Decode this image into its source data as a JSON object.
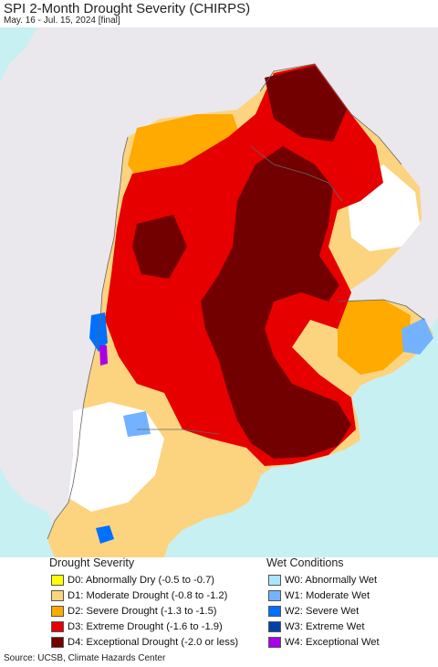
{
  "title": "SPI 2-Month Drought Severity (CHIRPS)",
  "subtitle": "May. 16 - Jul. 15, 2024 [final]",
  "map": {
    "ocean_color": "#c7f0f3",
    "land_outside_color": "#eae8ec",
    "border_color": "#666666"
  },
  "legend": {
    "drought_title": "Drought Severity",
    "wet_title": "Wet Conditions",
    "drought": [
      {
        "label": "D0: Abnormally Dry (-0.5 to -0.7)",
        "color": "#ffff00"
      },
      {
        "label": "D1: Moderate Drought (-0.8 to -1.2)",
        "color": "#fcd37f"
      },
      {
        "label": "D2: Severe Drought (-1.3 to -1.5)",
        "color": "#ffaa00"
      },
      {
        "label": "D3: Extreme Drought (-1.6 to -1.9)",
        "color": "#e60000"
      },
      {
        "label": "D4: Exceptional Drought (-2.0 or less)",
        "color": "#730000"
      }
    ],
    "wet": [
      {
        "label": "W0: Abnormally Wet",
        "color": "#aae5ff"
      },
      {
        "label": "W1: Moderate Wet",
        "color": "#73b2ff"
      },
      {
        "label": "W2: Severe Wet",
        "color": "#0070ff"
      },
      {
        "label": "W3: Extreme Wet",
        "color": "#0042a8"
      },
      {
        "label": "W4: Exceptional Wet",
        "color": "#a900e6"
      }
    ]
  },
  "source": "Source: UCSB, Climate Hazards Center"
}
